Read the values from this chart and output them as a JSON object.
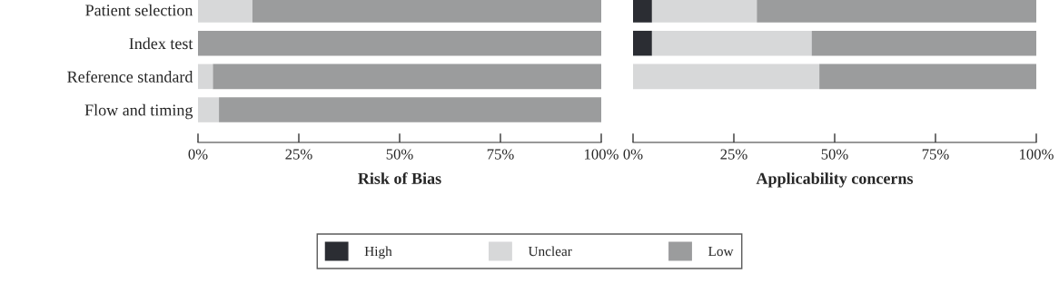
{
  "chart_data": [
    {
      "type": "bar",
      "orientation": "horizontal",
      "stacked": true,
      "xlabel": "Risk of Bias",
      "categories": [
        "Patient selection",
        "Index test",
        "Reference standard",
        "Flow and timing"
      ],
      "series": [
        {
          "name": "High",
          "color": "#2b2d33",
          "values": [
            0,
            0,
            0,
            0
          ]
        },
        {
          "name": "Unclear",
          "color": "#d7d8d9",
          "values": [
            13.5,
            0,
            3.7,
            5.2
          ]
        },
        {
          "name": "Low",
          "color": "#9b9c9d",
          "values": [
            86.5,
            100,
            96.3,
            94.8
          ]
        }
      ],
      "xlim": [
        0,
        100
      ],
      "xticks": [
        {
          "value": 0,
          "label": "0%"
        },
        {
          "value": 25,
          "label": "25%"
        },
        {
          "value": 50,
          "label": "50%"
        },
        {
          "value": 75,
          "label": "75%"
        },
        {
          "value": 100,
          "label": "100%"
        }
      ],
      "grid": false,
      "legend": "bottom"
    },
    {
      "type": "bar",
      "orientation": "horizontal",
      "stacked": true,
      "xlabel": "Applicability concerns",
      "categories": [
        null,
        null,
        null,
        null
      ],
      "series": [
        {
          "color": "#2b2d33",
          "values": [
            4.7,
            4.7,
            0,
            null
          ]
        },
        {
          "color": "#d7d8d9",
          "values": [
            26.0,
            39.6,
            46.2,
            null
          ]
        },
        {
          "color": "#9b9c9d",
          "values": [
            69.3,
            55.7,
            53.8,
            null
          ]
        }
      ],
      "xlim": [
        0,
        100
      ],
      "xticks": [
        {
          "value": 0,
          "label": "0%"
        },
        {
          "value": 25,
          "label": "25%"
        },
        {
          "value": 50,
          "label": "50%"
        },
        {
          "value": 75,
          "label": "75%"
        },
        {
          "value": 100,
          "label": "100%"
        }
      ],
      "grid": false,
      "tick_labels": "x"
    }
  ]
}
